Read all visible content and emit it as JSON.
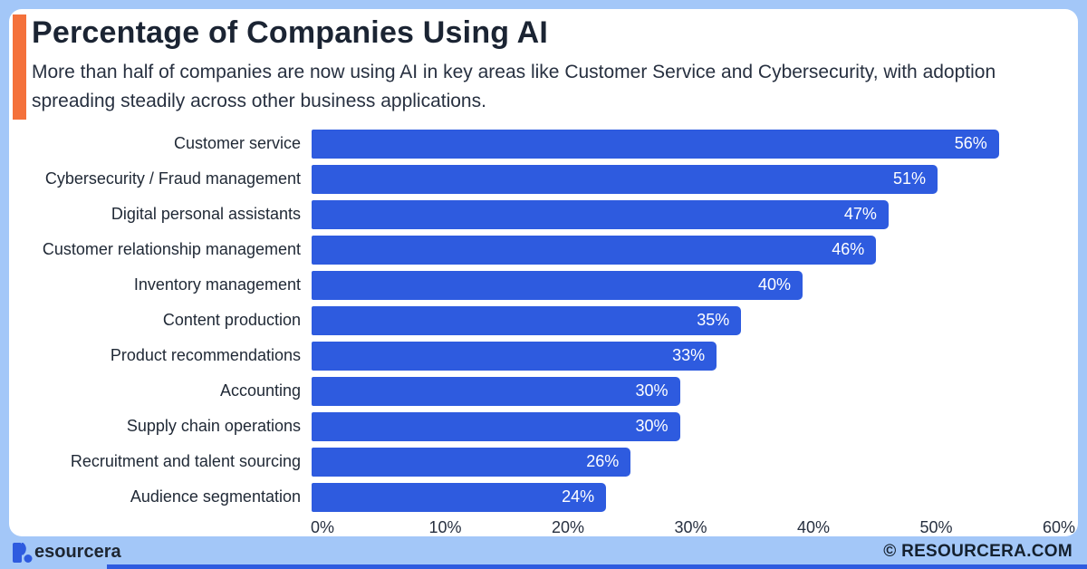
{
  "header": {
    "title": "Percentage of Companies Using AI",
    "subtitle": "More than half of companies are now using AI in key areas like Customer Service and Cybersecurity, with adoption spreading steadily across other business applications."
  },
  "chart_data": {
    "type": "bar",
    "orientation": "horizontal",
    "title": "Percentage of Companies Using AI",
    "categories": [
      "Customer service",
      "Cybersecurity / Fraud management",
      "Digital personal assistants",
      "Customer relationship management",
      "Inventory management",
      "Content production",
      "Product recommendations",
      "Accounting",
      "Supply chain operations",
      "Recruitment and talent sourcing",
      "Audience segmentation"
    ],
    "values": [
      56,
      51,
      47,
      46,
      40,
      35,
      33,
      30,
      30,
      26,
      24
    ],
    "value_labels": [
      "56%",
      "51%",
      "47%",
      "46%",
      "40%",
      "35%",
      "33%",
      "30%",
      "30%",
      "26%",
      "24%"
    ],
    "x_ticks": [
      "0%",
      "10%",
      "20%",
      "30%",
      "40%",
      "50%",
      "60%"
    ],
    "xlim": [
      0,
      60
    ],
    "grid": false,
    "legend": null,
    "value_label_position": "inside-end",
    "bar_color": "#2E5BDF"
  },
  "footer": {
    "brand_mark": "resourcera-logo-r-glyph",
    "brand_text": "esourcera",
    "copyright": "© RESOURCERA.COM"
  },
  "colors": {
    "page_bg": "#A3C7F8",
    "card_bg": "#FFFFFF",
    "accent_orange": "#F4713B",
    "bar_blue": "#2E5BDF",
    "title_color": "#1B2433",
    "text_color": "#273040",
    "value_text": "#FFFFFF"
  }
}
